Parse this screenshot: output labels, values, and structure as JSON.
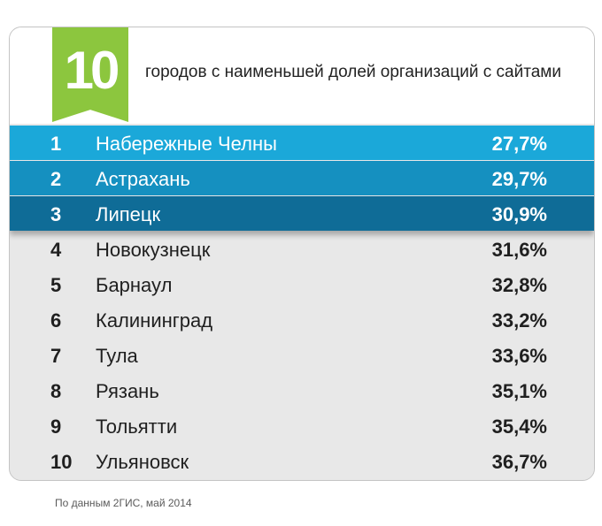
{
  "header": {
    "badge": "10",
    "title": "городов с наименьшей долей организаций с сайтами"
  },
  "table": {
    "rows": [
      {
        "rank": "1",
        "city": "Набережные Челны",
        "value": "27,7%"
      },
      {
        "rank": "2",
        "city": "Астрахань",
        "value": "29,7%"
      },
      {
        "rank": "3",
        "city": "Липецк",
        "value": "30,9%"
      },
      {
        "rank": "4",
        "city": "Новокузнецк",
        "value": "31,6%"
      },
      {
        "rank": "5",
        "city": "Барнаул",
        "value": "32,8%"
      },
      {
        "rank": "6",
        "city": "Калининград",
        "value": "33,2%"
      },
      {
        "rank": "7",
        "city": "Тула",
        "value": "33,6%"
      },
      {
        "rank": "8",
        "city": "Рязань",
        "value": "35,1%"
      },
      {
        "rank": "9",
        "city": "Тольятти",
        "value": "35,4%"
      },
      {
        "rank": "10",
        "city": "Ульяновск",
        "value": "36,7%"
      }
    ]
  },
  "footnote": "По данным 2ГИС, май 2014",
  "colors": {
    "badge": "#8cc63e",
    "highlight_1": "#1ba8d9",
    "highlight_2": "#1590c0",
    "highlight_3": "#0f6c97",
    "row_bg": "#e8e8e8"
  }
}
